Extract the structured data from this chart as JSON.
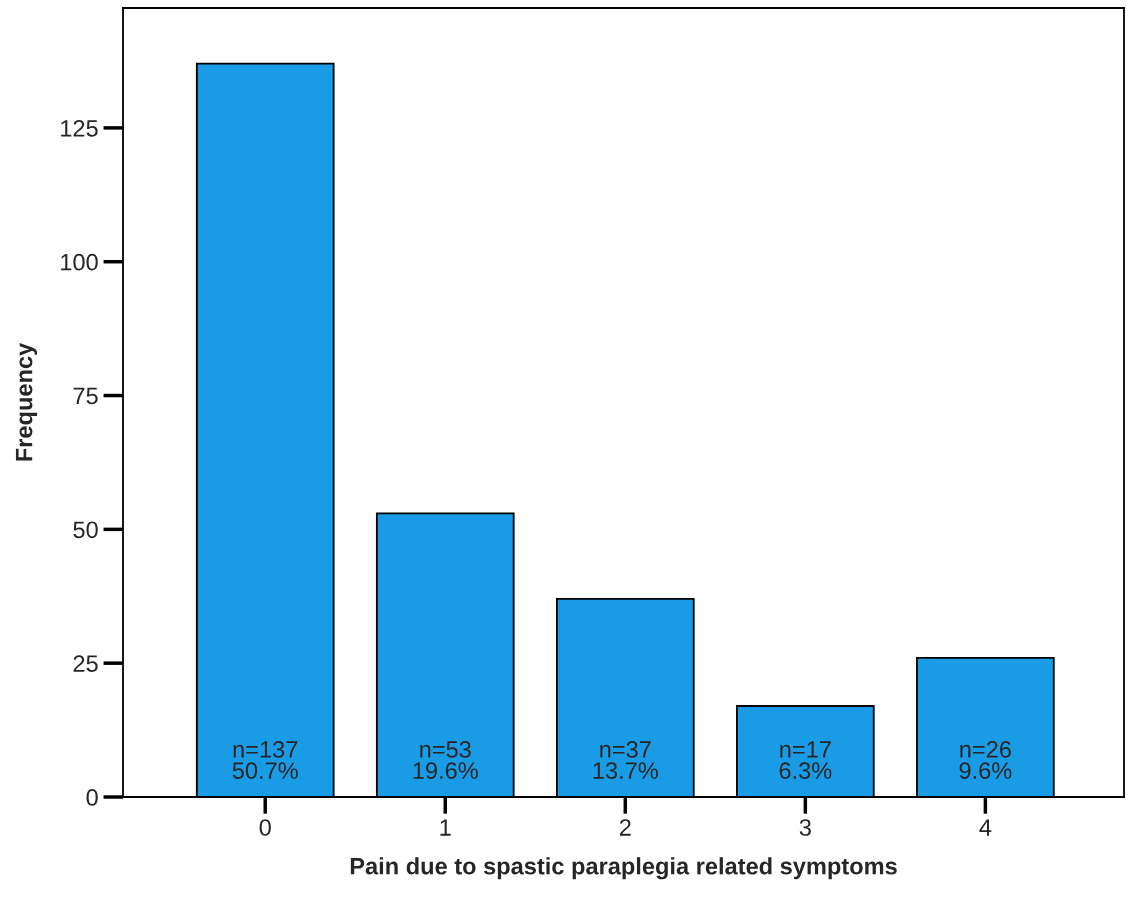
{
  "chart_data": {
    "type": "bar",
    "xlabel": "Pain due to spastic paraplegia related symptoms",
    "ylabel": "Frequency",
    "categories": [
      "0",
      "1",
      "2",
      "3",
      "4"
    ],
    "values": [
      137,
      53,
      37,
      17,
      26
    ],
    "value_labels": [
      "n=137\n50.7%",
      "n=53\n19.6%",
      "n=37\n13.7%",
      "n=17\n6.3%",
      "n=26\n9.6%"
    ],
    "color": "#1a9be6",
    "ylim": [
      0,
      147.4
    ],
    "yticks": [
      0,
      25,
      50,
      75,
      100,
      125
    ],
    "grid": false
  }
}
